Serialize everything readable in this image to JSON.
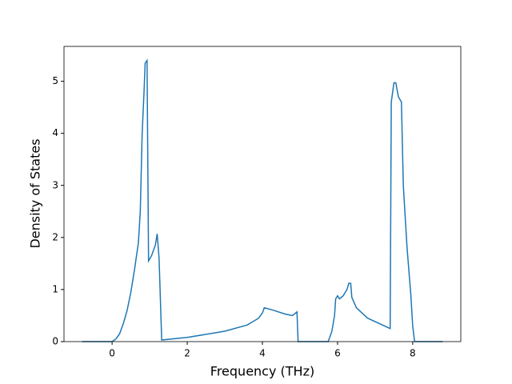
{
  "chart_data": {
    "type": "line",
    "xlabel": "Frequency (THz)",
    "ylabel": "Density of States",
    "x": [
      -0.8,
      0,
      0.1,
      0.2,
      0.3,
      0.4,
      0.5,
      0.6,
      0.7,
      0.75,
      0.8,
      0.85,
      0.88,
      0.93,
      0.97,
      1.05,
      1.15,
      1.2,
      1.25,
      1.32,
      2,
      3,
      3.6,
      3.9,
      4.0,
      4.05,
      4.3,
      4.6,
      4.8,
      4.92,
      4.95,
      5.75,
      5.85,
      5.92,
      5.95,
      6.0,
      6.05,
      6.15,
      6.25,
      6.3,
      6.35,
      6.38,
      6.5,
      6.8,
      7.1,
      7.4,
      7.43,
      7.5,
      7.55,
      7.62,
      7.7,
      7.75,
      7.85,
      7.95,
      8.0,
      8.05,
      8.8
    ],
    "series": [
      {
        "color": "#1f77b4",
        "values": [
          0,
          0,
          0.05,
          0.15,
          0.35,
          0.6,
          0.95,
          1.4,
          1.9,
          2.5,
          4.0,
          4.8,
          5.35,
          5.4,
          1.55,
          1.65,
          1.85,
          2.07,
          1.6,
          0.03,
          0.08,
          0.2,
          0.32,
          0.45,
          0.55,
          0.65,
          0.6,
          0.53,
          0.5,
          0.57,
          0,
          0,
          0.2,
          0.5,
          0.82,
          0.88,
          0.82,
          0.88,
          1.0,
          1.12,
          1.12,
          0.85,
          0.65,
          0.45,
          0.35,
          0.25,
          4.6,
          4.97,
          4.97,
          4.7,
          4.6,
          3.0,
          1.8,
          0.9,
          0.3,
          0,
          0
        ]
      }
    ],
    "xlim": [
      -1.28,
      9.28
    ],
    "xticks": [
      0,
      2,
      4,
      6,
      8
    ],
    "ylim": [
      0,
      5.67
    ],
    "yticks": [
      0,
      1,
      2,
      3,
      4,
      5
    ]
  }
}
